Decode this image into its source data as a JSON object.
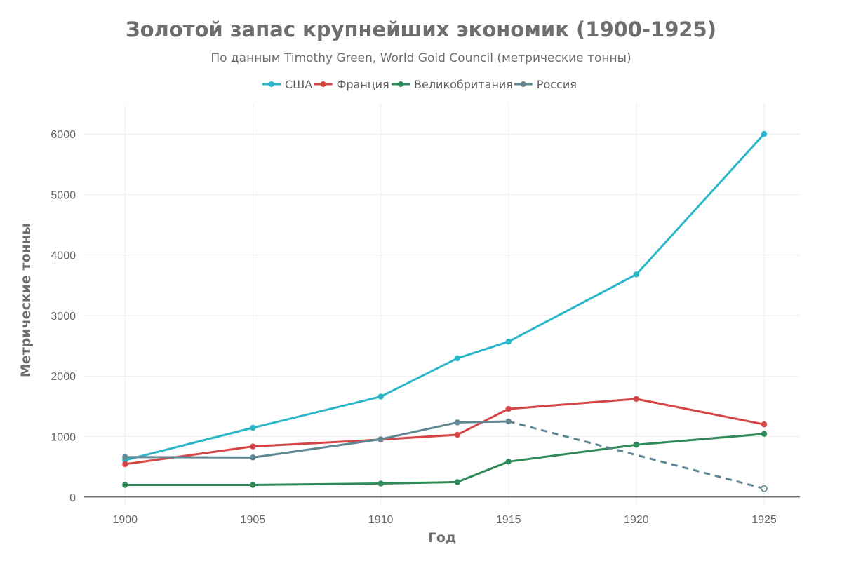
{
  "chart_data": {
    "type": "line",
    "title": "Золотой запас крупнейших экономик (1900-1925)",
    "subtitle": "По данным Timothy Green, World Gold Council (метрические тонны)",
    "xlabel": "Год",
    "ylabel": "Метрические тонны",
    "xlim": [
      1898.4,
      1926.4
    ],
    "ylim": [
      -130,
      6500
    ],
    "x_ticks": [
      1900,
      1905,
      1910,
      1915,
      1920,
      1925
    ],
    "y_ticks": [
      0,
      1000,
      2000,
      3000,
      4000,
      5000,
      6000
    ],
    "grid": true,
    "legend_position": "top-center",
    "series": [
      {
        "name": "США",
        "color": "#29b6c9",
        "x": [
          1900,
          1905,
          1910,
          1913,
          1915,
          1920,
          1925
        ],
        "values": [
          610,
          1145,
          1660,
          2293,
          2568,
          3679,
          6000
        ]
      },
      {
        "name": "Франция",
        "color": "#d64545",
        "x": [
          1900,
          1905,
          1910,
          1913,
          1915,
          1920,
          1925
        ],
        "values": [
          544,
          836,
          949,
          1030,
          1457,
          1622,
          1201
        ]
      },
      {
        "name": "Великобритания",
        "color": "#2e8b57",
        "x": [
          1900,
          1905,
          1910,
          1913,
          1915,
          1920,
          1925
        ],
        "values": [
          200,
          200,
          223,
          248,
          585,
          864,
          1044
        ]
      },
      {
        "name": "Россия",
        "color": "#5f8793",
        "x": [
          1900,
          1905,
          1910,
          1913,
          1915
        ],
        "values": [
          661,
          654,
          955,
          1233,
          1250
        ],
        "projection": {
          "style": "dashed",
          "x": [
            1915,
            1925
          ],
          "values": [
            1250,
            140
          ],
          "end_marker": "hollow"
        }
      }
    ]
  }
}
